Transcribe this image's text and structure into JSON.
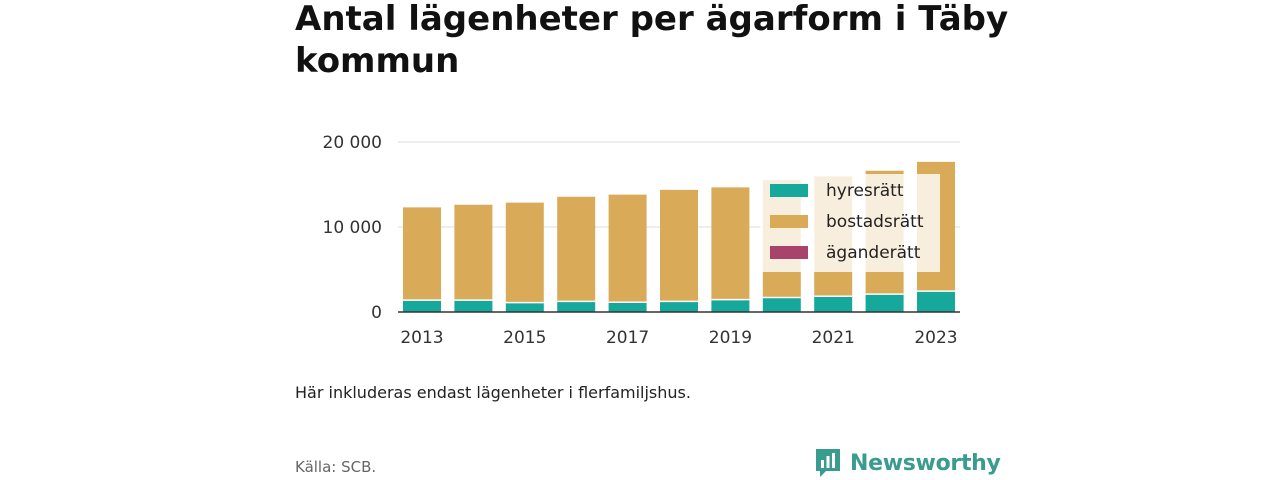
{
  "chart_data": {
    "type": "bar",
    "stacked": true,
    "title": "Antal lägenheter per ägarform i Täby kommun",
    "note": "Här inkluderas endast lägenheter i flerfamiljshus.",
    "source": "Källa: SCB.",
    "categories": [
      "2013",
      "2014",
      "2015",
      "2016",
      "2017",
      "2018",
      "2019",
      "2020",
      "2021",
      "2022",
      "2023"
    ],
    "x_tick_labels": [
      "2013",
      "",
      "2015",
      "",
      "2017",
      "",
      "2019",
      "",
      "2021",
      "",
      "2023"
    ],
    "y_ticks": [
      {
        "value": 0,
        "label": "0"
      },
      {
        "value": 10000,
        "label": "10 000"
      },
      {
        "value": 20000,
        "label": "20 000"
      }
    ],
    "ylim": [
      0,
      20000
    ],
    "grid": true,
    "legend_position": "top-right",
    "series": [
      {
        "name": "hyresrätt",
        "color": "#16a89a",
        "values": [
          1400,
          1400,
          1100,
          1250,
          1150,
          1250,
          1450,
          1700,
          1850,
          2100,
          2450
        ]
      },
      {
        "name": "bostadsrätt",
        "color": "#d9ab59",
        "values": [
          11000,
          11300,
          11850,
          12400,
          12750,
          13200,
          13300,
          13900,
          14200,
          14600,
          15300
        ]
      },
      {
        "name": "äganderätt",
        "color": "#a8436c",
        "values": [
          0,
          0,
          0,
          0,
          0,
          0,
          0,
          0,
          0,
          0,
          0
        ]
      }
    ]
  },
  "brand": {
    "name": "Newsworthy",
    "icon": "bar-chart-speech-bubble-icon",
    "color": "#3a9c8f"
  }
}
